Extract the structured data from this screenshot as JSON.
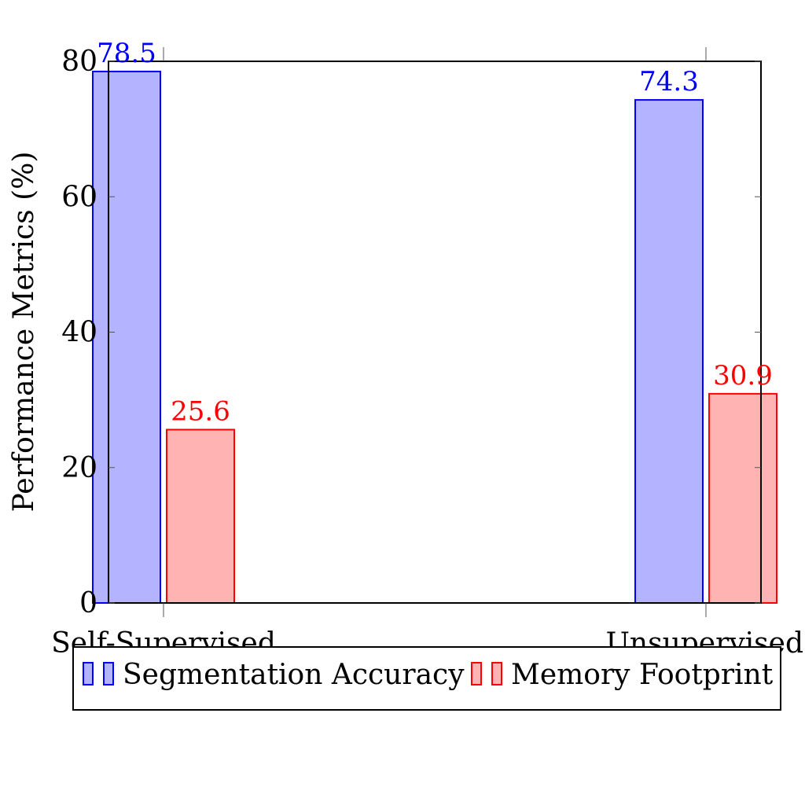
{
  "chart_data": {
    "type": "bar",
    "categories": [
      "Self-Supervised",
      "Unsupervised"
    ],
    "series": [
      {
        "name": "Segmentation Accuracy",
        "values": [
          78.5,
          74.3
        ],
        "color": "#0000ff",
        "fill": "#b3b3ff"
      },
      {
        "name": "Memory Footprint",
        "values": [
          25.6,
          30.9
        ],
        "color": "#ff0000",
        "fill": "#ffb3b3"
      }
    ],
    "ylabel": "Performance Metrics (%)",
    "xlabel": "",
    "ylim": [
      0,
      80
    ],
    "yticks": [
      0,
      20,
      40,
      60,
      80
    ],
    "data_labels": [
      "78.5",
      "25.6",
      "74.3",
      "30.9"
    ],
    "grid": false,
    "legend_position": "bottom"
  }
}
